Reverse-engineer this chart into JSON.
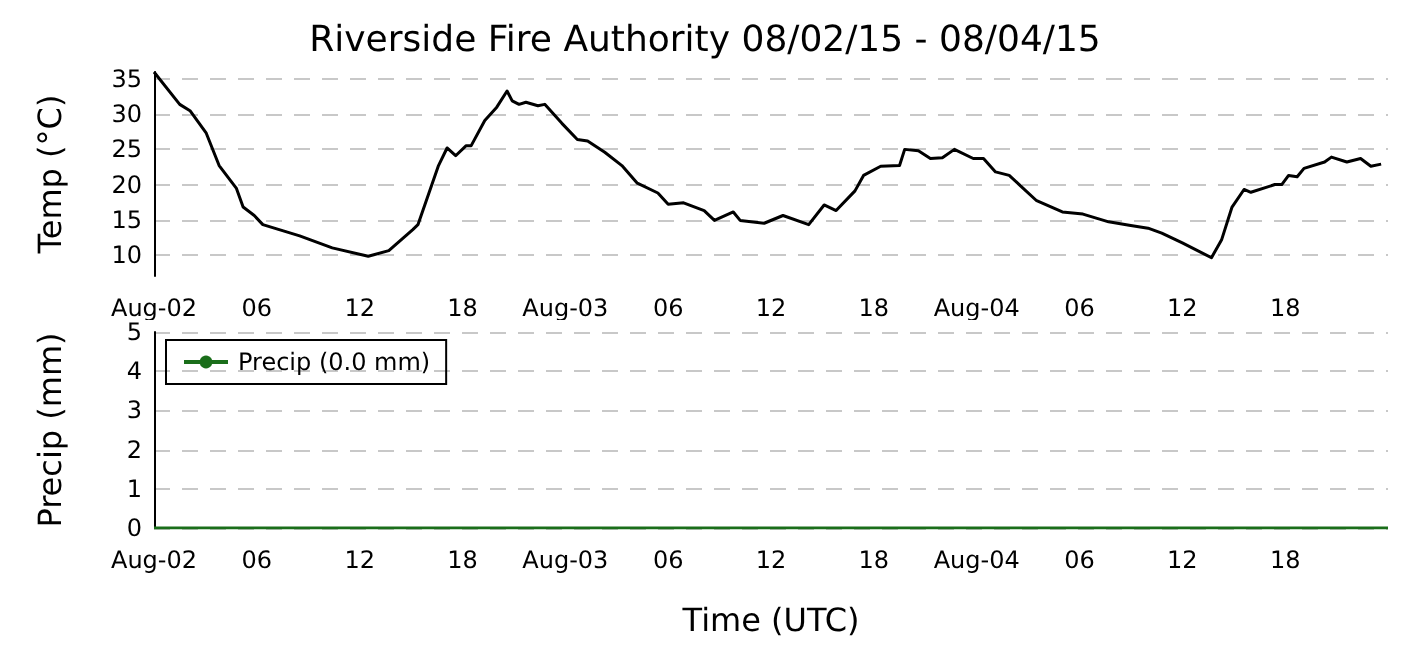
{
  "chart_data": [
    {
      "type": "line",
      "title": "Riverside Fire Authority 08/02/15 - 08/04/15",
      "ylabel": "Temp (°C)",
      "x": [
        "--08-02T00:00",
        "--08-02T01:30",
        "--08-02T02:06",
        "--08-02T03:03",
        "--08-02T03:48",
        "--08-02T04:48",
        "--08-02T05:12",
        "--08-02T05:51",
        "--08-02T06:21",
        "--08-02T08:30",
        "--08-02T10:24",
        "--08-02T12:30",
        "--08-02T13:42",
        "--08-02T15:06",
        "--08-02T15:24",
        "--08-02T16:36",
        "--08-02T17:06",
        "--08-02T17:36",
        "--08-02T18:12",
        "--08-02T18:30",
        "--08-02T19:18",
        "--08-02T20:00",
        "--08-02T20:36",
        "--08-02T20:54",
        "--08-02T21:18",
        "--08-02T21:42",
        "--08-02T22:24",
        "--08-02T22:48",
        "--08-02T23:48",
        "--08-03T00:42",
        "--08-03T01:18",
        "--08-03T02:18",
        "--08-03T03:18",
        "--08-03T04:12",
        "--08-03T05:24",
        "--08-03T06:00",
        "--08-03T06:54",
        "--08-03T08:06",
        "--08-03T08:42",
        "--08-03T09:48",
        "--08-03T10:12",
        "--08-03T11:36",
        "--08-03T12:42",
        "--08-03T14:12",
        "--08-03T15:06",
        "--08-03T15:48",
        "--08-03T16:54",
        "--08-03T17:24",
        "--08-03T18:24",
        "--08-03T19:30",
        "--08-03T19:48",
        "--08-03T20:36",
        "--08-03T21:18",
        "--08-03T22:00",
        "--08-03T22:42",
        "--08-03T23:48",
        "--08-04T00:24",
        "--08-04T01:06",
        "--08-04T01:54",
        "--08-04T02:42",
        "--08-04T03:30",
        "--08-04T05:00",
        "--08-04T06:12",
        "--08-04T07:42",
        "--08-04T08:54",
        "--08-04T10:00",
        "--08-04T10:48",
        "--08-04T12:00",
        "--08-04T13:42",
        "--08-04T14:18",
        "--08-04T14:54",
        "--08-04T15:36",
        "--08-04T16:00",
        "--08-04T17:24",
        "--08-04T17:48",
        "--08-04T18:12",
        "--08-04T18:42",
        "--08-04T19:06",
        "--08-04T20:18",
        "--08-04T20:42",
        "--08-04T21:36",
        "--08-04T22:24",
        "--08-04T23:00",
        "--08-04T23:36"
      ],
      "series": [
        {
          "color": "#000000",
          "values": [
            36.0,
            31.4,
            30.5,
            27.3,
            22.7,
            19.5,
            16.8,
            15.6,
            14.3,
            12.7,
            11.0,
            9.8,
            10.6,
            13.6,
            14.3,
            22.7,
            25.2,
            24.1,
            25.5,
            25.5,
            29.1,
            31.0,
            33.3,
            31.9,
            31.4,
            31.7,
            31.2,
            31.4,
            28.7,
            26.4,
            26.2,
            24.6,
            22.7,
            20.2,
            18.8,
            17.2,
            17.4,
            16.3,
            14.9,
            16.1,
            14.9,
            14.5,
            15.6,
            14.3,
            17.1,
            16.3,
            19.1,
            21.3,
            22.6,
            22.7,
            25.0,
            24.8,
            23.7,
            23.8,
            25.0,
            23.7,
            23.7,
            21.8,
            21.3,
            19.5,
            17.7,
            16.1,
            15.8,
            14.7,
            14.2,
            13.8,
            13.1,
            11.7,
            9.6,
            12.2,
            16.8,
            19.3,
            18.9,
            20.0,
            20.0,
            21.3,
            21.1,
            22.3,
            23.2,
            23.9,
            23.2,
            23.7,
            22.6,
            22.9
          ]
        }
      ],
      "xlim": [
        "--08-02T00:00",
        "--08-05T00:00"
      ],
      "ylim": [
        7,
        36
      ],
      "xticks": [
        {
          "value": "--08-02T00:00",
          "label": "Aug-02"
        },
        {
          "value": "--08-02T06:00",
          "label": "06"
        },
        {
          "value": "--08-02T12:00",
          "label": "12"
        },
        {
          "value": "--08-02T18:00",
          "label": "18"
        },
        {
          "value": "--08-03T00:00",
          "label": "Aug-03"
        },
        {
          "value": "--08-03T06:00",
          "label": "06"
        },
        {
          "value": "--08-03T12:00",
          "label": "12"
        },
        {
          "value": "--08-03T18:00",
          "label": "18"
        },
        {
          "value": "--08-04T00:00",
          "label": "Aug-04"
        },
        {
          "value": "--08-04T06:00",
          "label": "06"
        },
        {
          "value": "--08-04T12:00",
          "label": "12"
        },
        {
          "value": "--08-04T18:00",
          "label": "18"
        }
      ],
      "yticks": [
        10,
        15,
        20,
        25,
        30,
        35
      ],
      "grid": "y"
    },
    {
      "type": "line",
      "ylabel": "Precip (mm)",
      "xlabel": "Time (UTC)",
      "x": [
        "--08-02T00:00",
        "--08-02T12:00",
        "--08-03T00:00",
        "--08-03T12:00",
        "--08-04T00:00",
        "--08-04T12:00",
        "--08-05T00:00"
      ],
      "series": [
        {
          "name": "Precip (0.0 mm)",
          "color": "#1a6e1a",
          "values": [
            0,
            0,
            0,
            0,
            0,
            0,
            0
          ]
        }
      ],
      "xlim": [
        "--08-02T00:00",
        "--08-05T00:00"
      ],
      "ylim": [
        0,
        5
      ],
      "xticks": [
        {
          "value": "--08-02T00:00",
          "label": "Aug-02"
        },
        {
          "value": "--08-02T06:00",
          "label": "06"
        },
        {
          "value": "--08-02T12:00",
          "label": "12"
        },
        {
          "value": "--08-02T18:00",
          "label": "18"
        },
        {
          "value": "--08-03T00:00",
          "label": "Aug-03"
        },
        {
          "value": "--08-03T06:00",
          "label": "06"
        },
        {
          "value": "--08-03T12:00",
          "label": "12"
        },
        {
          "value": "--08-03T18:00",
          "label": "18"
        },
        {
          "value": "--08-04T00:00",
          "label": "Aug-04"
        },
        {
          "value": "--08-04T06:00",
          "label": "06"
        },
        {
          "value": "--08-04T12:00",
          "label": "12"
        },
        {
          "value": "--08-04T18:00",
          "label": "18"
        }
      ],
      "yticks": [
        0,
        1,
        2,
        3,
        4,
        5
      ],
      "grid": "y",
      "legend": "top left"
    }
  ]
}
